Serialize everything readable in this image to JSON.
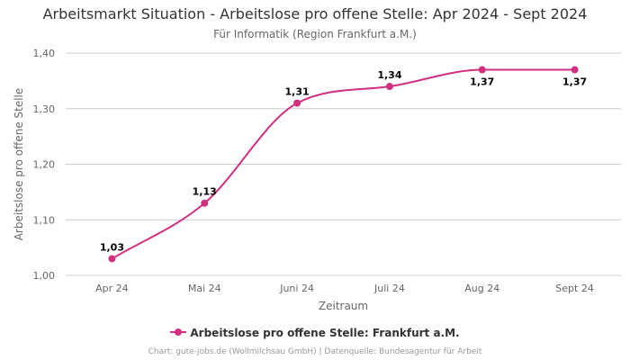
{
  "chart_data": {
    "type": "line",
    "title": "Arbeitsmarkt Situation - Arbeitslose pro offene Stelle: Apr 2024 - Sept 2024",
    "subtitle": "Für Informatik (Region Frankfurt a.M.)",
    "xlabel": "Zeitraum",
    "ylabel": "Arbeitslose pro offene Stelle",
    "categories": [
      "Apr 24",
      "Mai 24",
      "Juni 24",
      "Juli 24",
      "Aug 24",
      "Sept 24"
    ],
    "series": [
      {
        "name": "Arbeitslose pro offene Stelle: Frankfurt a.M.",
        "values": [
          1.03,
          1.13,
          1.31,
          1.34,
          1.37,
          1.37
        ],
        "labels": [
          "1,03",
          "1,13",
          "1,31",
          "1,34",
          "1,37",
          "1,37"
        ],
        "color": "#d0307f"
      }
    ],
    "ylim": [
      1.0,
      1.4
    ],
    "yticks": [
      1.0,
      1.1,
      1.2,
      1.3,
      1.4
    ],
    "ytick_labels": [
      "1,00",
      "1,10",
      "1,20",
      "1,30",
      "1,40"
    ],
    "grid": true,
    "legend_position": "bottom-center"
  },
  "credits": "Chart: gute-jobs.de (Wollmilchsau GmbH) | Datenquelle: Bundesagentur für Arbeit",
  "colors": {
    "series": "#d0307f",
    "grid": "#cccccc",
    "axis_text": "#666666",
    "title": "#333333"
  }
}
